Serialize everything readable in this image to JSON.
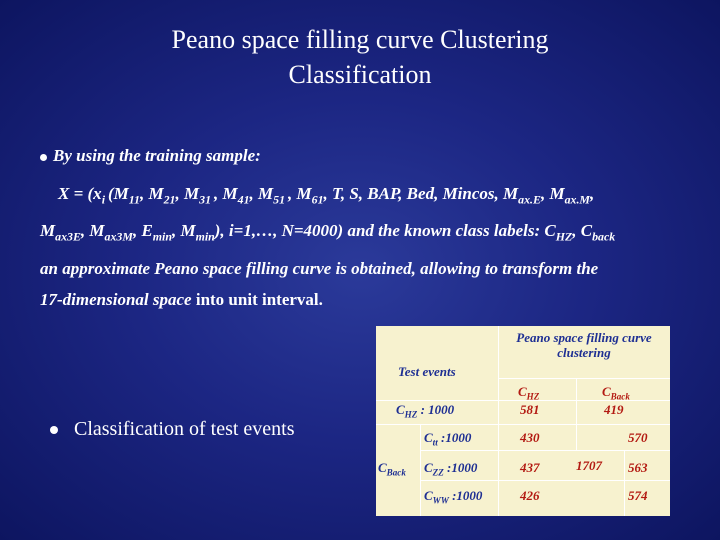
{
  "title_line1": "Peano space filling curve Clustering",
  "title_line2": "Classification",
  "bullet1": "By using the training sample:",
  "para": {
    "line1_html": "X = (x<sub>i </sub>(M<sub>11</sub>, M<sub>21</sub>, M<sub>31 </sub>, M<sub>41</sub>, M<sub>51 </sub>, M<sub>61</sub>, T, S, BAP, Bed, Mincos, M<sub>ax.E</sub>, M<sub>ax.M</sub>,",
    "line2_html": "M<sub>ax3E</sub>, M<sub>ax3M</sub>, E<sub>min</sub>, M<sub>min</sub>), i=1,…, N=4000) and the known class labels: C<sub>HZ</sub>, C<sub>back</sub>",
    "line3": "an approximate Peano space filling curve is obtained, allowing to transform the",
    "line4_a": "17-dimensional space",
    "line4_b": " into unit interval."
  },
  "bullet2": "Classification of test events",
  "table": {
    "header_method": "Peano space filling curve clustering",
    "header_test": "Test events",
    "col_hz_html": "C<sub>HZ</sub>",
    "col_back_html": "C<sub>Back</sub>",
    "row_hz_label_html": "C<sub>HZ</sub> : 1000",
    "row_hz_hz": "581",
    "row_hz_back": "419",
    "back_label_html": "C<sub>Back</sub>",
    "row_tt_label_html": "C<sub>tt</sub> :1000",
    "row_tt_hz": "430",
    "row_tt_back": "570",
    "row_zz_label_html": "C<sub>ZZ</sub> :1000",
    "row_zz_hz": "437",
    "row_zz_back": "563",
    "back_total": "1707",
    "row_ww_label_html": "C<sub>WW</sub> :1000",
    "row_ww_hz": "426",
    "row_ww_back": "574"
  }
}
